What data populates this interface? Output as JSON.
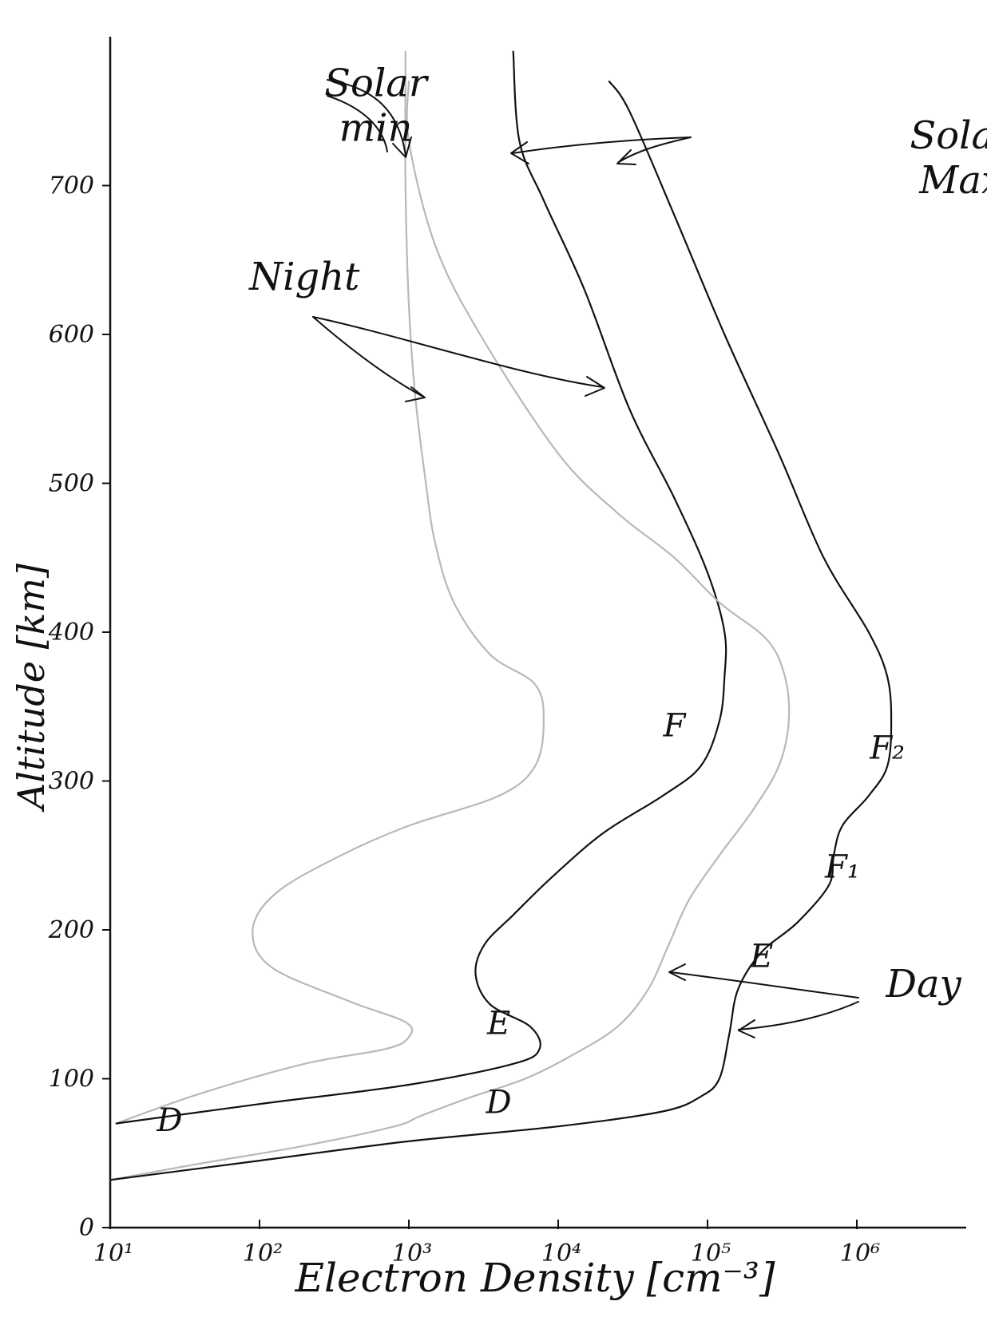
{
  "chart_data": {
    "type": "line",
    "xlabel": "Electron Density [cm⁻³]",
    "ylabel": "Altitude [km]",
    "x_scale": "log",
    "xlim": [
      10,
      3000000
    ],
    "ylim": [
      0,
      800
    ],
    "grid": false,
    "x_ticks": [
      {
        "value": 10,
        "label": "10¹"
      },
      {
        "value": 100,
        "label": "10²"
      },
      {
        "value": 1000,
        "label": "10³"
      },
      {
        "value": 10000,
        "label": "10⁴"
      },
      {
        "value": 100000,
        "label": "10⁵"
      },
      {
        "value": 1000000,
        "label": "10⁶"
      }
    ],
    "y_ticks": [
      {
        "value": 0,
        "label": "0"
      },
      {
        "value": 100,
        "label": "100"
      },
      {
        "value": 200,
        "label": "200"
      },
      {
        "value": 300,
        "label": "300"
      },
      {
        "value": 400,
        "label": "400"
      },
      {
        "value": 500,
        "label": "500"
      },
      {
        "value": 600,
        "label": "600"
      },
      {
        "value": 700,
        "label": "700"
      }
    ],
    "series": [
      {
        "condition": "solar min night",
        "color": "#b8b8b8",
        "points": [
          [
            11,
            70
          ],
          [
            40,
            90
          ],
          [
            200,
            110
          ],
          [
            700,
            120
          ],
          [
            1000,
            128
          ],
          [
            950,
            138
          ],
          [
            400,
            152
          ],
          [
            120,
            175
          ],
          [
            90,
            200
          ],
          [
            130,
            225
          ],
          [
            350,
            250
          ],
          [
            1000,
            270
          ],
          [
            4000,
            290
          ],
          [
            7000,
            310
          ],
          [
            8000,
            340
          ],
          [
            7000,
            365
          ],
          [
            3500,
            385
          ],
          [
            2000,
            420
          ],
          [
            1500,
            460
          ],
          [
            1300,
            500
          ],
          [
            1100,
            560
          ],
          [
            1000,
            620
          ],
          [
            950,
            700
          ],
          [
            950,
            790
          ]
        ]
      },
      {
        "condition": "solar max night",
        "color": "#111111",
        "points": [
          [
            11,
            70
          ],
          [
            100,
            83
          ],
          [
            1000,
            96
          ],
          [
            5000,
            110
          ],
          [
            7500,
            120
          ],
          [
            6500,
            135
          ],
          [
            3500,
            150
          ],
          [
            2800,
            170
          ],
          [
            3200,
            190
          ],
          [
            5000,
            210
          ],
          [
            9000,
            235
          ],
          [
            20000,
            265
          ],
          [
            50000,
            290
          ],
          [
            90000,
            310
          ],
          [
            120000,
            340
          ],
          [
            130000,
            370
          ],
          [
            130000,
            400
          ],
          [
            100000,
            440
          ],
          [
            60000,
            490
          ],
          [
            30000,
            550
          ],
          [
            15000,
            630
          ],
          [
            8000,
            690
          ],
          [
            5500,
            730
          ],
          [
            5000,
            790
          ]
        ]
      },
      {
        "condition": "solar min day",
        "color": "#b8b8b8",
        "points": [
          [
            10,
            32
          ],
          [
            40,
            43
          ],
          [
            200,
            55
          ],
          [
            800,
            68
          ],
          [
            1200,
            75
          ],
          [
            2500,
            87
          ],
          [
            6000,
            100
          ],
          [
            12000,
            115
          ],
          [
            25000,
            135
          ],
          [
            40000,
            160
          ],
          [
            55000,
            190
          ],
          [
            75000,
            220
          ],
          [
            120000,
            250
          ],
          [
            200000,
            280
          ],
          [
            300000,
            310
          ],
          [
            350000,
            340
          ],
          [
            330000,
            370
          ],
          [
            250000,
            395
          ],
          [
            120000,
            420
          ],
          [
            60000,
            450
          ],
          [
            25000,
            480
          ],
          [
            10000,
            520
          ],
          [
            3000,
            600
          ],
          [
            1500,
            660
          ],
          [
            1000,
            730
          ],
          [
            1000,
            770
          ]
        ]
      },
      {
        "condition": "solar max day",
        "color": "#111111",
        "points": [
          [
            10,
            32
          ],
          [
            100,
            45
          ],
          [
            1000,
            58
          ],
          [
            10000,
            68
          ],
          [
            50000,
            78
          ],
          [
            90000,
            88
          ],
          [
            120000,
            100
          ],
          [
            140000,
            130
          ],
          [
            160000,
            160
          ],
          [
            230000,
            185
          ],
          [
            400000,
            205
          ],
          [
            650000,
            230
          ],
          [
            700000,
            250
          ],
          [
            800000,
            270
          ],
          [
            1200000,
            290
          ],
          [
            1600000,
            310
          ],
          [
            1700000,
            340
          ],
          [
            1600000,
            370
          ],
          [
            1200000,
            400
          ],
          [
            600000,
            450
          ],
          [
            300000,
            520
          ],
          [
            130000,
            600
          ],
          [
            60000,
            680
          ],
          [
            30000,
            750
          ],
          [
            22000,
            770
          ]
        ]
      }
    ],
    "annotations": [
      {
        "text": "Solar",
        "x": 600,
        "y": 760
      },
      {
        "text": "min",
        "x": 600,
        "y": 730
      },
      {
        "text": "Solar",
        "x": 5000000,
        "y": 725
      },
      {
        "text": "Max",
        "x": 5000000,
        "y": 695
      },
      {
        "text": "Night",
        "x": 200,
        "y": 630
      },
      {
        "text": "F",
        "x": 60000,
        "y": 330
      },
      {
        "text": "F₂",
        "x": 1600000,
        "y": 315
      },
      {
        "text": "F₁",
        "x": 800000,
        "y": 235
      },
      {
        "text": "E",
        "x": 230000,
        "y": 175
      },
      {
        "text": "E",
        "x": 4000,
        "y": 130
      },
      {
        "text": "Day",
        "x": 2800000,
        "y": 155
      },
      {
        "text": "D",
        "x": 25,
        "y": 65
      },
      {
        "text": "D",
        "x": 4000,
        "y": 77
      }
    ]
  }
}
